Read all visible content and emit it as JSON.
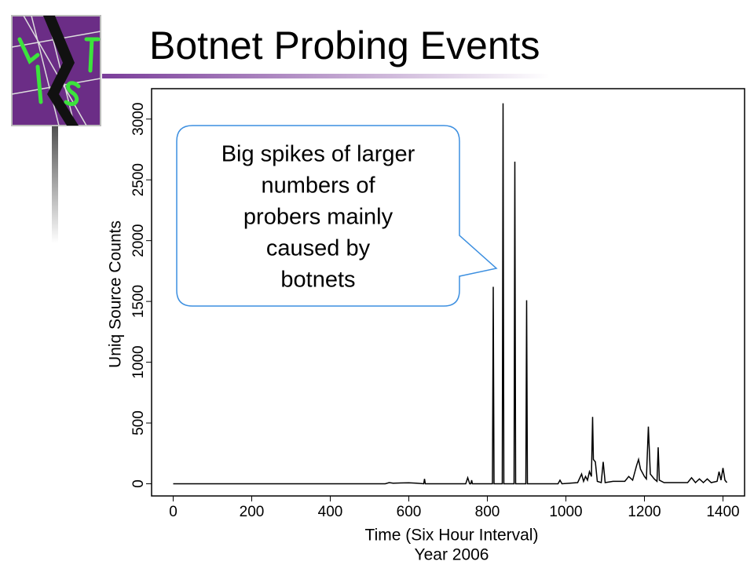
{
  "chart_data": {
    "type": "line",
    "title": "Botnet Probing Events",
    "xlabel": [
      "Time (Six Hour Interval)",
      "Year 2006"
    ],
    "ylabel": "Uniq Source Counts",
    "annotation": [
      "Big spikes of larger",
      "numbers of",
      "probers mainly",
      "caused by",
      "botnets"
    ],
    "x": [
      0,
      540,
      550,
      560,
      600,
      620,
      638,
      640,
      642,
      745,
      750,
      755,
      758,
      760,
      762,
      810,
      813,
      815,
      817,
      835,
      838,
      840,
      842,
      866,
      868,
      870,
      872,
      896,
      898,
      900,
      902,
      980,
      985,
      990,
      1030,
      1040,
      1045,
      1050,
      1055,
      1060,
      1065,
      1068,
      1070,
      1075,
      1080,
      1090,
      1095,
      1100,
      1120,
      1150,
      1160,
      1170,
      1180,
      1185,
      1190,
      1200,
      1205,
      1210,
      1215,
      1225,
      1232,
      1235,
      1238,
      1250,
      1310,
      1320,
      1330,
      1340,
      1350,
      1360,
      1370,
      1385,
      1390,
      1395,
      1400,
      1405,
      1410
    ],
    "values": [
      0,
      0,
      10,
      5,
      8,
      5,
      0,
      40,
      0,
      0,
      50,
      0,
      0,
      30,
      0,
      0,
      0,
      1620,
      0,
      0,
      0,
      3130,
      0,
      0,
      0,
      2650,
      0,
      0,
      0,
      1510,
      0,
      0,
      30,
      0,
      10,
      80,
      20,
      60,
      30,
      100,
      60,
      550,
      200,
      180,
      20,
      10,
      180,
      10,
      20,
      20,
      60,
      30,
      150,
      200,
      120,
      60,
      40,
      470,
      80,
      40,
      20,
      300,
      30,
      10,
      10,
      50,
      10,
      40,
      10,
      40,
      10,
      20,
      100,
      30,
      130,
      30,
      10
    ],
    "color": "#000000",
    "xlim": [
      -55,
      1455
    ],
    "xticks": [
      0,
      200,
      400,
      600,
      800,
      1000,
      1200,
      1400
    ],
    "ylim": [
      -100,
      3250
    ],
    "yticks": [
      0,
      500,
      1000,
      1500,
      2000,
      2500,
      3000
    ],
    "grid": false
  }
}
